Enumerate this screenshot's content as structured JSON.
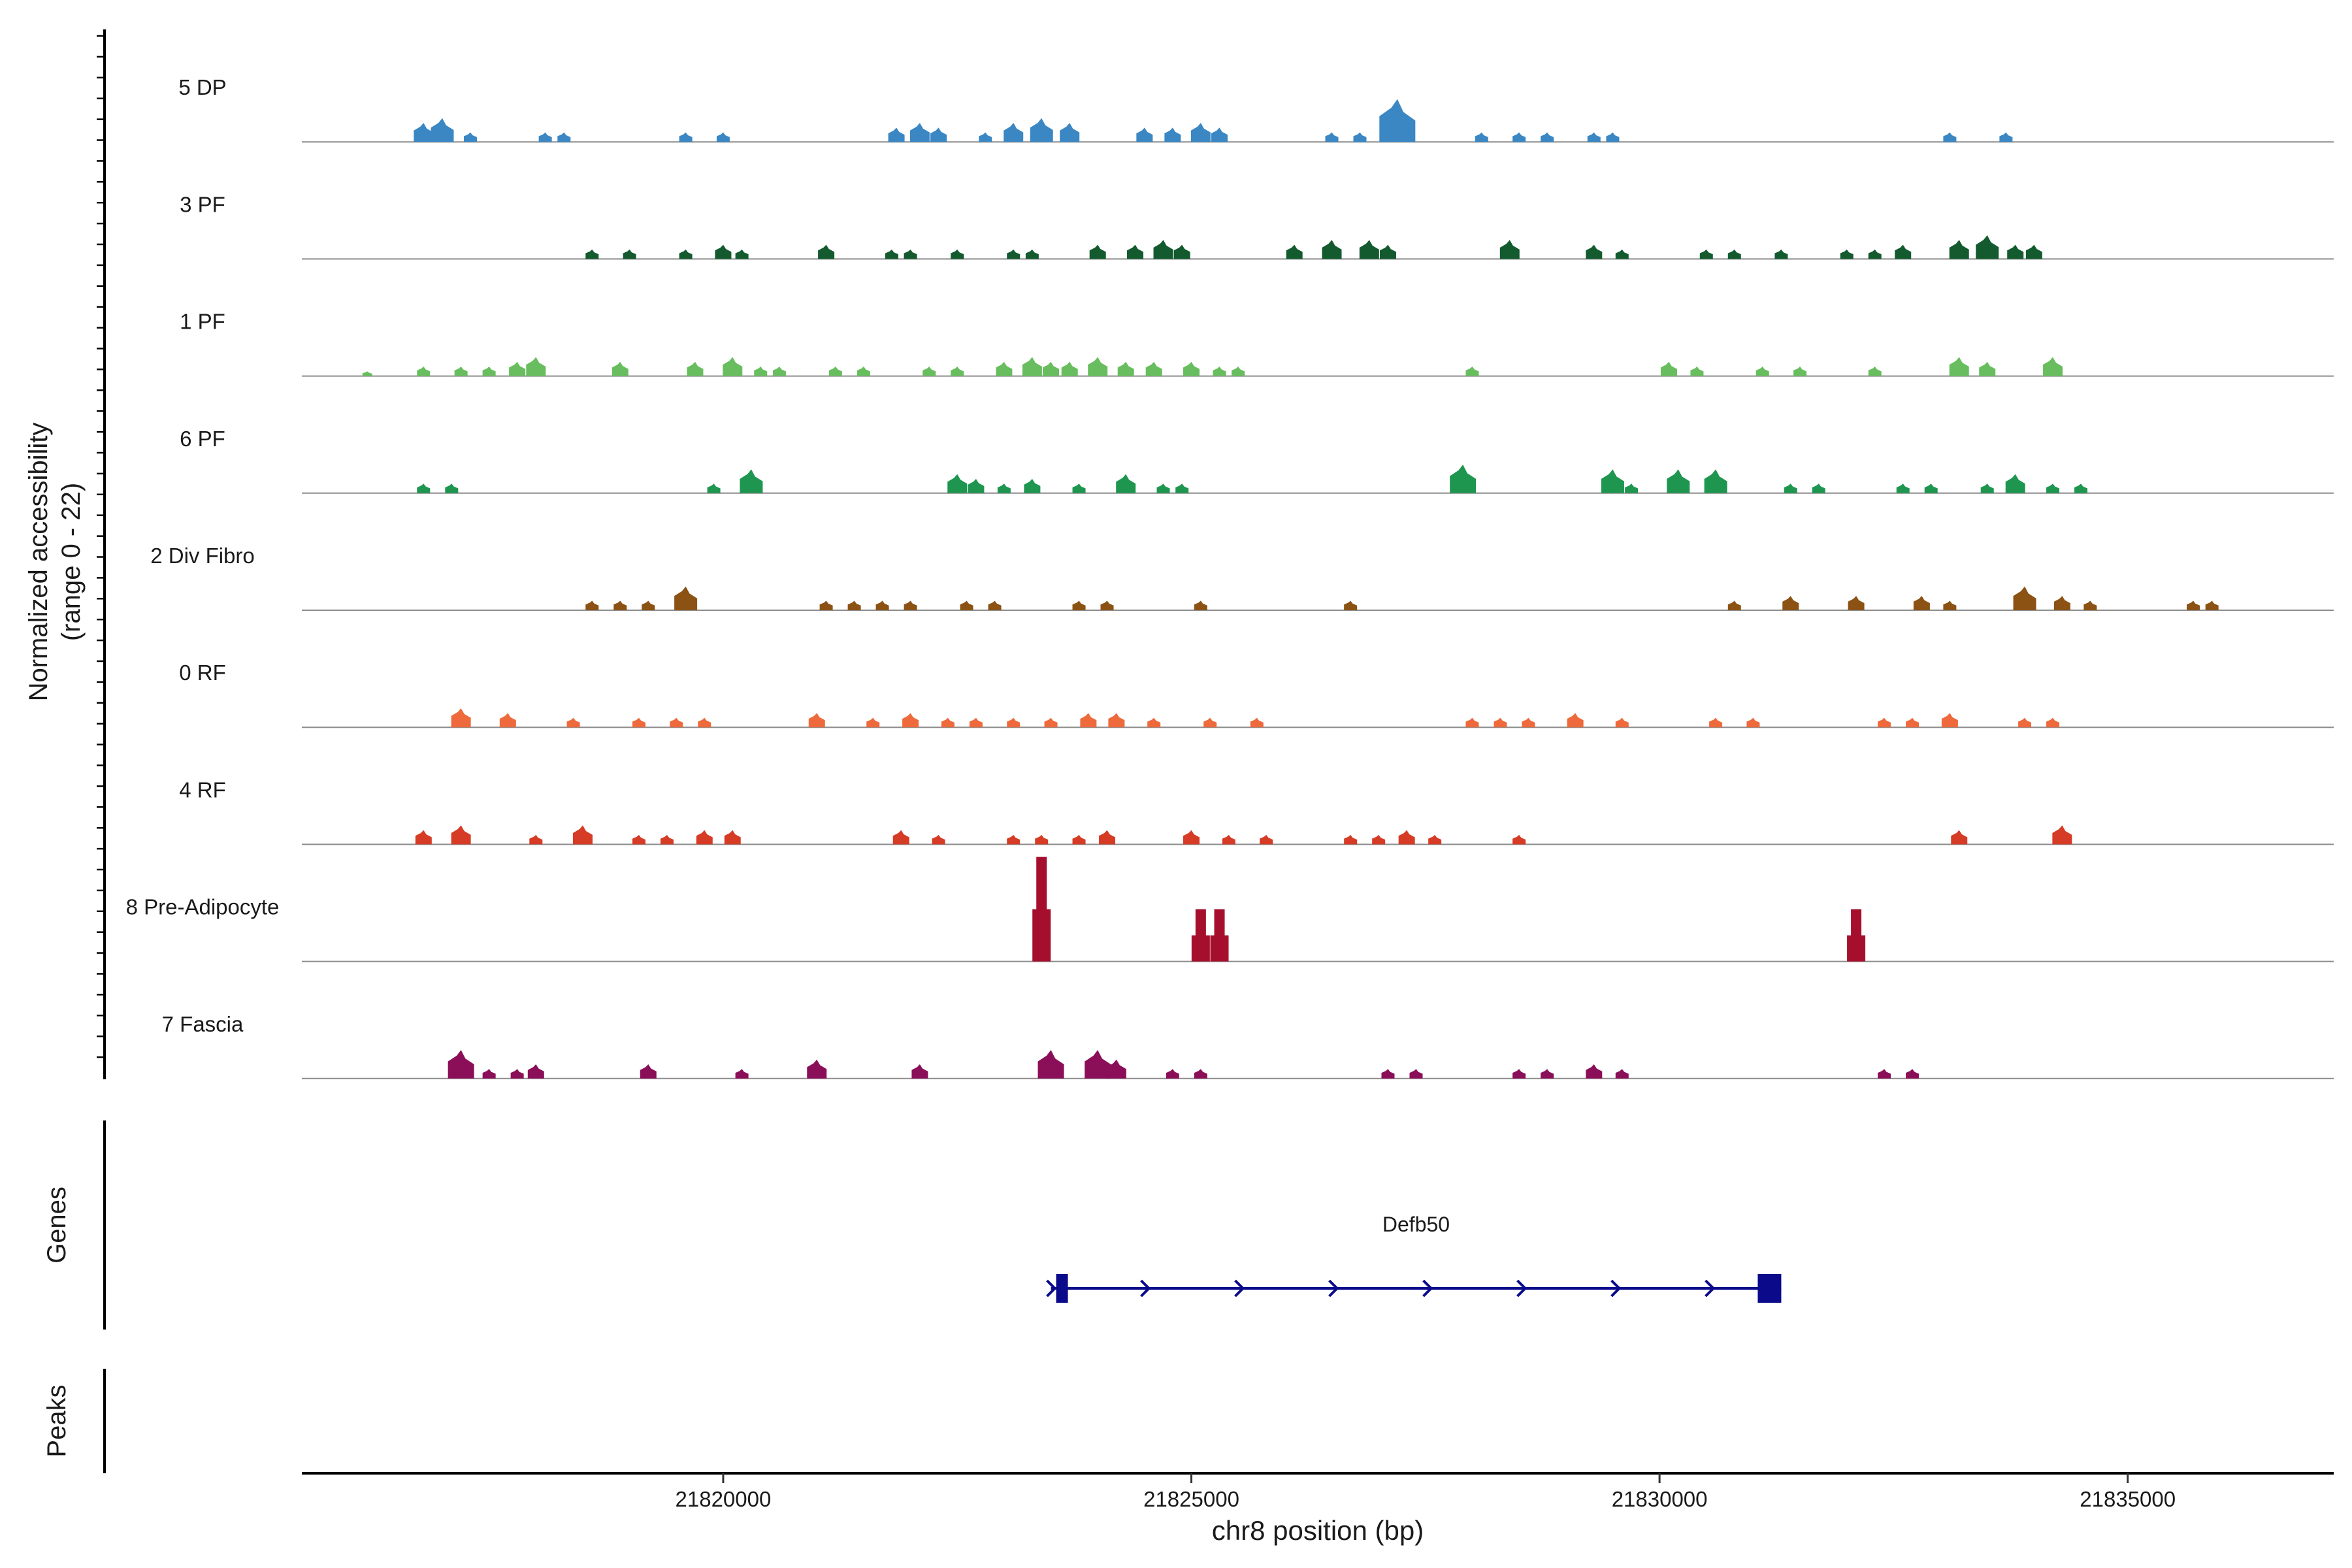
{
  "chart_data": {
    "type": "area",
    "title": "",
    "ylabel_line1": "Normalized accessibility",
    "ylabel_line2": "(range 0 - 22)",
    "xlabel": "chr8 position (bp)",
    "xlim": [
      21815500,
      21837200
    ],
    "ylim": [
      0,
      22
    ],
    "x_ticks": [
      21820000,
      21825000,
      21830000,
      21835000
    ],
    "x_tick_labels": [
      "21820000",
      "21825000",
      "21830000",
      "21835000"
    ],
    "series": [
      {
        "name": "5 DP",
        "color": "#3A87C4",
        "peaks": [
          [
            21816800,
            4
          ],
          [
            21817000,
            5
          ],
          [
            21817300,
            2
          ],
          [
            21818100,
            2
          ],
          [
            21818300,
            2
          ],
          [
            21819600,
            2
          ],
          [
            21820000,
            2
          ],
          [
            21821850,
            3
          ],
          [
            21822100,
            4
          ],
          [
            21822300,
            3
          ],
          [
            21822800,
            2
          ],
          [
            21823100,
            4
          ],
          [
            21823400,
            5
          ],
          [
            21823700,
            4
          ],
          [
            21824500,
            3
          ],
          [
            21824800,
            3
          ],
          [
            21825100,
            4
          ],
          [
            21825300,
            3
          ],
          [
            21826500,
            2
          ],
          [
            21826800,
            2
          ],
          [
            21827200,
            9
          ],
          [
            21828100,
            2
          ],
          [
            21828500,
            2
          ],
          [
            21828800,
            2
          ],
          [
            21829300,
            2
          ],
          [
            21829500,
            2
          ],
          [
            21833100,
            2
          ],
          [
            21833700,
            2
          ]
        ]
      },
      {
        "name": "3 PF",
        "color": "#145A2F",
        "peaks": [
          [
            21818600,
            2
          ],
          [
            21819000,
            2
          ],
          [
            21819600,
            2
          ],
          [
            21820000,
            3
          ],
          [
            21820200,
            2
          ],
          [
            21821100,
            3
          ],
          [
            21821800,
            2
          ],
          [
            21822000,
            2
          ],
          [
            21822500,
            2
          ],
          [
            21823100,
            2
          ],
          [
            21823300,
            2
          ],
          [
            21824000,
            3
          ],
          [
            21824400,
            3
          ],
          [
            21824700,
            4
          ],
          [
            21824900,
            3
          ],
          [
            21826100,
            3
          ],
          [
            21826500,
            4
          ],
          [
            21826900,
            4
          ],
          [
            21827100,
            3
          ],
          [
            21828400,
            4
          ],
          [
            21829300,
            3
          ],
          [
            21829600,
            2
          ],
          [
            21830500,
            2
          ],
          [
            21830800,
            2
          ],
          [
            21831300,
            2
          ],
          [
            21832000,
            2
          ],
          [
            21832300,
            2
          ],
          [
            21832600,
            3
          ],
          [
            21833200,
            4
          ],
          [
            21833500,
            5
          ],
          [
            21833800,
            3
          ],
          [
            21834000,
            3
          ]
        ]
      },
      {
        "name": "1 PF",
        "color": "#68BE5E",
        "peaks": [
          [
            21816200,
            1
          ],
          [
            21816800,
            2
          ],
          [
            21817200,
            2
          ],
          [
            21817500,
            2
          ],
          [
            21817800,
            3
          ],
          [
            21818000,
            4
          ],
          [
            21818900,
            3
          ],
          [
            21819700,
            3
          ],
          [
            21820100,
            4
          ],
          [
            21820400,
            2
          ],
          [
            21820600,
            2
          ],
          [
            21821200,
            2
          ],
          [
            21821500,
            2
          ],
          [
            21822200,
            2
          ],
          [
            21822500,
            2
          ],
          [
            21823000,
            3
          ],
          [
            21823300,
            4
          ],
          [
            21823500,
            3
          ],
          [
            21823700,
            3
          ],
          [
            21824000,
            4
          ],
          [
            21824300,
            3
          ],
          [
            21824600,
            3
          ],
          [
            21825000,
            3
          ],
          [
            21825300,
            2
          ],
          [
            21825500,
            2
          ],
          [
            21828000,
            2
          ],
          [
            21830100,
            3
          ],
          [
            21830400,
            2
          ],
          [
            21831100,
            2
          ],
          [
            21831500,
            2
          ],
          [
            21832300,
            2
          ],
          [
            21833200,
            4
          ],
          [
            21833500,
            3
          ],
          [
            21834200,
            4
          ]
        ]
      },
      {
        "name": "6 PF",
        "color": "#1E9650",
        "peaks": [
          [
            21816800,
            2
          ],
          [
            21817100,
            2
          ],
          [
            21819900,
            2
          ],
          [
            21820300,
            5
          ],
          [
            21822500,
            4
          ],
          [
            21822700,
            3
          ],
          [
            21823000,
            2
          ],
          [
            21823300,
            3
          ],
          [
            21823800,
            2
          ],
          [
            21824300,
            4
          ],
          [
            21824700,
            2
          ],
          [
            21824900,
            2
          ],
          [
            21827900,
            6
          ],
          [
            21829500,
            5
          ],
          [
            21829700,
            2
          ],
          [
            21830200,
            5
          ],
          [
            21830600,
            5
          ],
          [
            21831400,
            2
          ],
          [
            21831700,
            2
          ],
          [
            21832600,
            2
          ],
          [
            21832900,
            2
          ],
          [
            21833500,
            2
          ],
          [
            21833800,
            4
          ],
          [
            21834200,
            2
          ],
          [
            21834500,
            2
          ]
        ]
      },
      {
        "name": "2 Div Fibro",
        "color": "#8B5214",
        "peaks": [
          [
            21818600,
            2
          ],
          [
            21818900,
            2
          ],
          [
            21819200,
            2
          ],
          [
            21819600,
            5
          ],
          [
            21821100,
            2
          ],
          [
            21821400,
            2
          ],
          [
            21821700,
            2
          ],
          [
            21822000,
            2
          ],
          [
            21822600,
            2
          ],
          [
            21822900,
            2
          ],
          [
            21823800,
            2
          ],
          [
            21824100,
            2
          ],
          [
            21825100,
            2
          ],
          [
            21826700,
            2
          ],
          [
            21830800,
            2
          ],
          [
            21831400,
            3
          ],
          [
            21832100,
            3
          ],
          [
            21832800,
            3
          ],
          [
            21833100,
            2
          ],
          [
            21833900,
            5
          ],
          [
            21834300,
            3
          ],
          [
            21834600,
            2
          ],
          [
            21835700,
            2
          ],
          [
            21835900,
            2
          ]
        ]
      },
      {
        "name": "0 RF",
        "color": "#EE6A3C",
        "peaks": [
          [
            21817200,
            4
          ],
          [
            21817700,
            3
          ],
          [
            21818400,
            2
          ],
          [
            21819100,
            2
          ],
          [
            21819500,
            2
          ],
          [
            21819800,
            2
          ],
          [
            21821000,
            3
          ],
          [
            21821600,
            2
          ],
          [
            21822000,
            3
          ],
          [
            21822400,
            2
          ],
          [
            21822700,
            2
          ],
          [
            21823100,
            2
          ],
          [
            21823500,
            2
          ],
          [
            21823900,
            3
          ],
          [
            21824200,
            3
          ],
          [
            21824600,
            2
          ],
          [
            21825200,
            2
          ],
          [
            21825700,
            2
          ],
          [
            21828000,
            2
          ],
          [
            21828300,
            2
          ],
          [
            21828600,
            2
          ],
          [
            21829100,
            3
          ],
          [
            21829600,
            2
          ],
          [
            21830600,
            2
          ],
          [
            21831000,
            2
          ],
          [
            21832400,
            2
          ],
          [
            21832700,
            2
          ],
          [
            21833100,
            3
          ],
          [
            21833900,
            2
          ],
          [
            21834200,
            2
          ]
        ]
      },
      {
        "name": "4 RF",
        "color": "#D63B26",
        "peaks": [
          [
            21816800,
            3
          ],
          [
            21817200,
            4
          ],
          [
            21818000,
            2
          ],
          [
            21818500,
            4
          ],
          [
            21819100,
            2
          ],
          [
            21819400,
            2
          ],
          [
            21819800,
            3
          ],
          [
            21820100,
            3
          ],
          [
            21821900,
            3
          ],
          [
            21822300,
            2
          ],
          [
            21823100,
            2
          ],
          [
            21823400,
            2
          ],
          [
            21823800,
            2
          ],
          [
            21824100,
            3
          ],
          [
            21825000,
            3
          ],
          [
            21825400,
            2
          ],
          [
            21825800,
            2
          ],
          [
            21826700,
            2
          ],
          [
            21827000,
            2
          ],
          [
            21827300,
            3
          ],
          [
            21827600,
            2
          ],
          [
            21828500,
            2
          ],
          [
            21833200,
            3
          ],
          [
            21834300,
            4
          ]
        ]
      },
      {
        "name": "8 Pre-Adipocyte",
        "color": "#A50F2D",
        "peaks": [
          [
            21823400,
            22
          ],
          [
            21825100,
            11
          ],
          [
            21825300,
            11
          ],
          [
            21832100,
            11
          ]
        ]
      },
      {
        "name": "7 Fascia",
        "color": "#8B0F58",
        "peaks": [
          [
            21817200,
            6
          ],
          [
            21817500,
            2
          ],
          [
            21817800,
            2
          ],
          [
            21818000,
            3
          ],
          [
            21819200,
            3
          ],
          [
            21820200,
            2
          ],
          [
            21821000,
            4
          ],
          [
            21822100,
            3
          ],
          [
            21823500,
            6
          ],
          [
            21824000,
            6
          ],
          [
            21824200,
            4
          ],
          [
            21824800,
            2
          ],
          [
            21825100,
            2
          ],
          [
            21827100,
            2
          ],
          [
            21827400,
            2
          ],
          [
            21828500,
            2
          ],
          [
            21828800,
            2
          ],
          [
            21829300,
            3
          ],
          [
            21829600,
            2
          ],
          [
            21832400,
            2
          ],
          [
            21832700,
            2
          ]
        ]
      }
    ],
    "gene": {
      "name": "Defb50",
      "start": 21823500,
      "end": 21831300,
      "strand": "+",
      "color": "#0A0A8B"
    },
    "track_labels": {
      "genes": "Genes",
      "peaks": "Peaks"
    }
  }
}
